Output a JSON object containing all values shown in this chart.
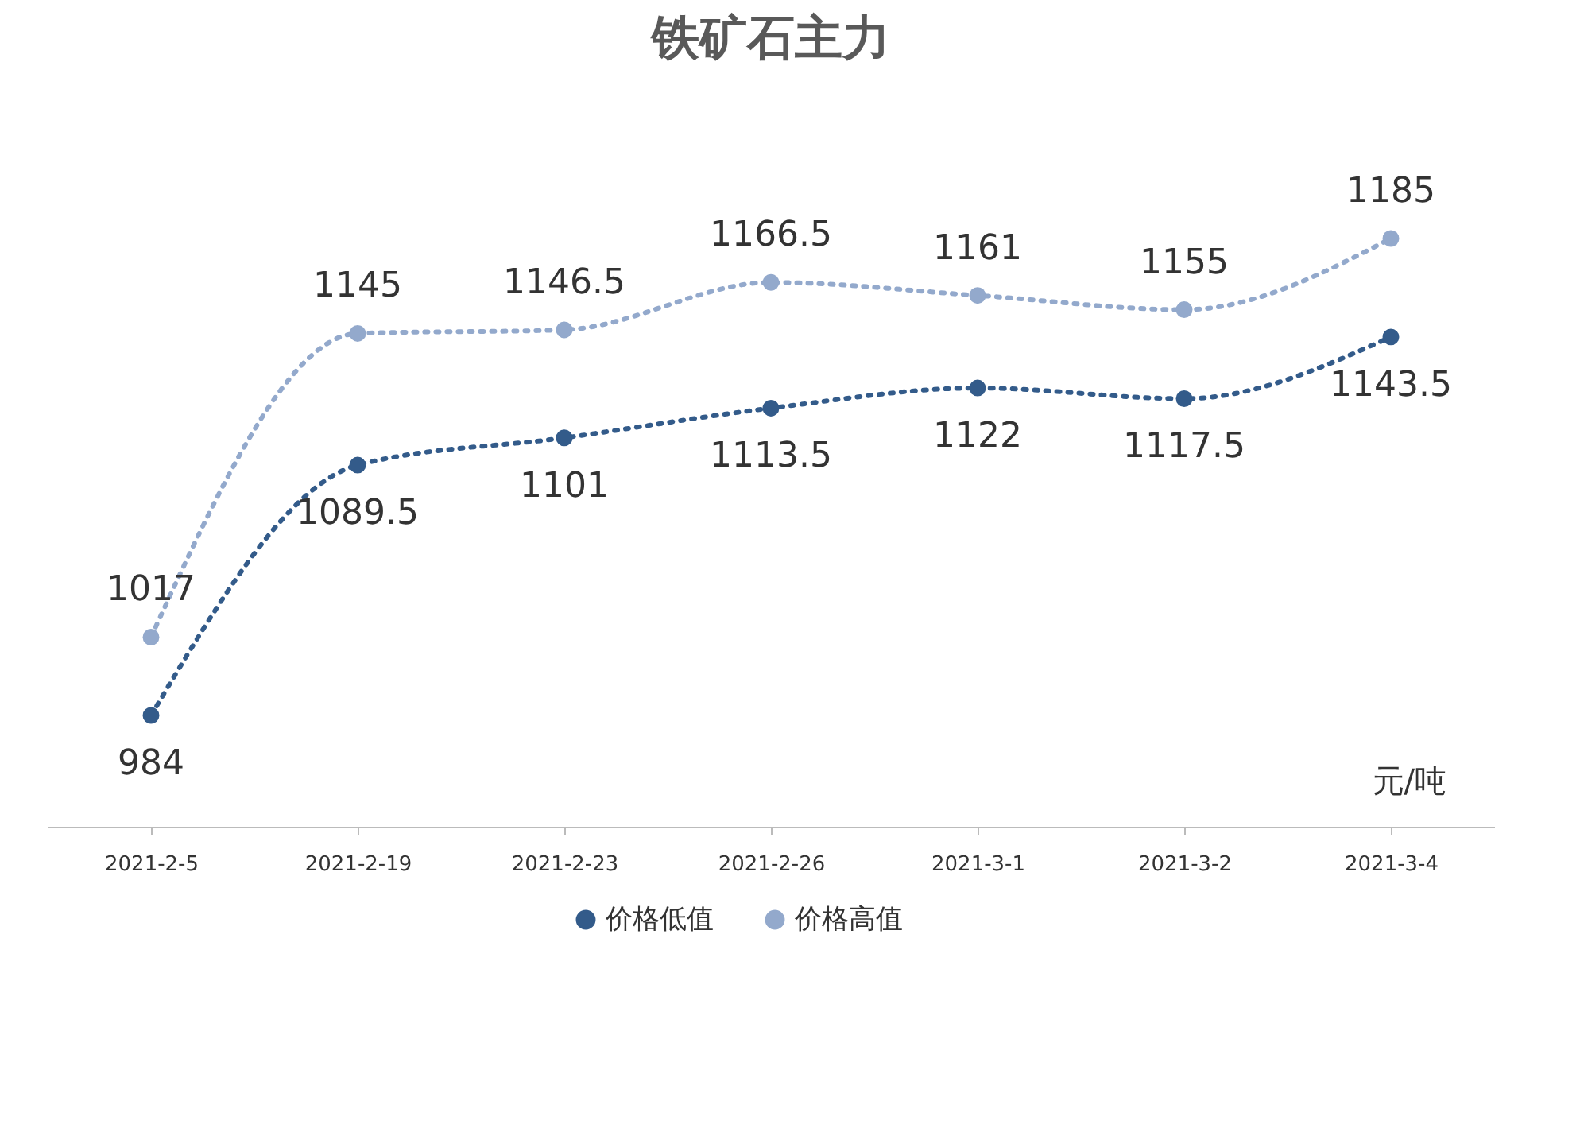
{
  "chart_data": {
    "type": "line",
    "title": "铁矿石主力",
    "categories": [
      "2021-2-5",
      "2021-2-19",
      "2021-2-23",
      "2021-2-26",
      "2021-3-1",
      "2021-3-2",
      "2021-3-4"
    ],
    "series": [
      {
        "name": "价格低值",
        "color": "#335b8a",
        "values": [
          984,
          1089.5,
          1101,
          1113.5,
          1122,
          1117.5,
          1143.5
        ]
      },
      {
        "name": "价格高值",
        "color": "#93a9cc",
        "values": [
          1017,
          1145,
          1146.5,
          1166.5,
          1161,
          1155,
          1185
        ]
      }
    ],
    "annotations": [
      "元/吨"
    ],
    "data_labels": true,
    "legend": "bottom",
    "marker": "circle",
    "line_style": "dotted",
    "tick_labels": "x"
  }
}
